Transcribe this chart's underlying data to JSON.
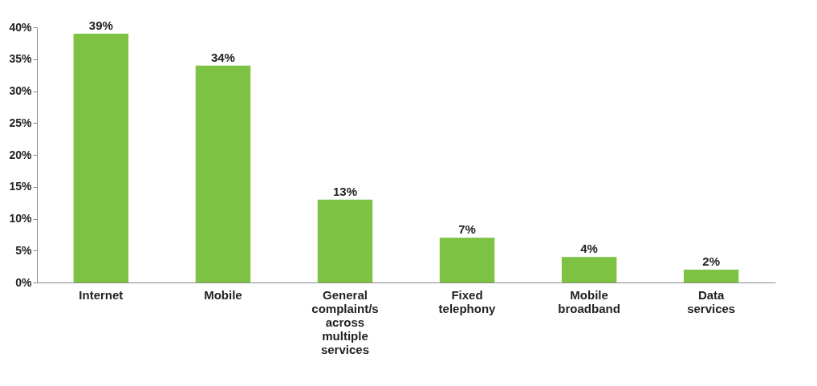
{
  "chart_data": {
    "type": "bar",
    "categories": [
      "Internet",
      "Mobile",
      "General complaint/s across multiple services",
      "Fixed telephony",
      "Mobile broadband",
      "Data services"
    ],
    "values": [
      39,
      34,
      13,
      7,
      4,
      2
    ],
    "value_labels": [
      "39%",
      "34%",
      "13%",
      "7%",
      "4%",
      "2%"
    ],
    "color": "#7dc242",
    "ylim": [
      0,
      40
    ],
    "yticks": [
      {
        "value": 0,
        "label": "0%"
      },
      {
        "value": 5,
        "label": "5%"
      },
      {
        "value": 10,
        "label": "10%"
      },
      {
        "value": 15,
        "label": "15%"
      },
      {
        "value": 20,
        "label": "20%"
      },
      {
        "value": 25,
        "label": "25%"
      },
      {
        "value": 30,
        "label": "30%"
      },
      {
        "value": 35,
        "label": "35%"
      },
      {
        "value": 40,
        "label": "40%"
      }
    ],
    "grid": false
  }
}
